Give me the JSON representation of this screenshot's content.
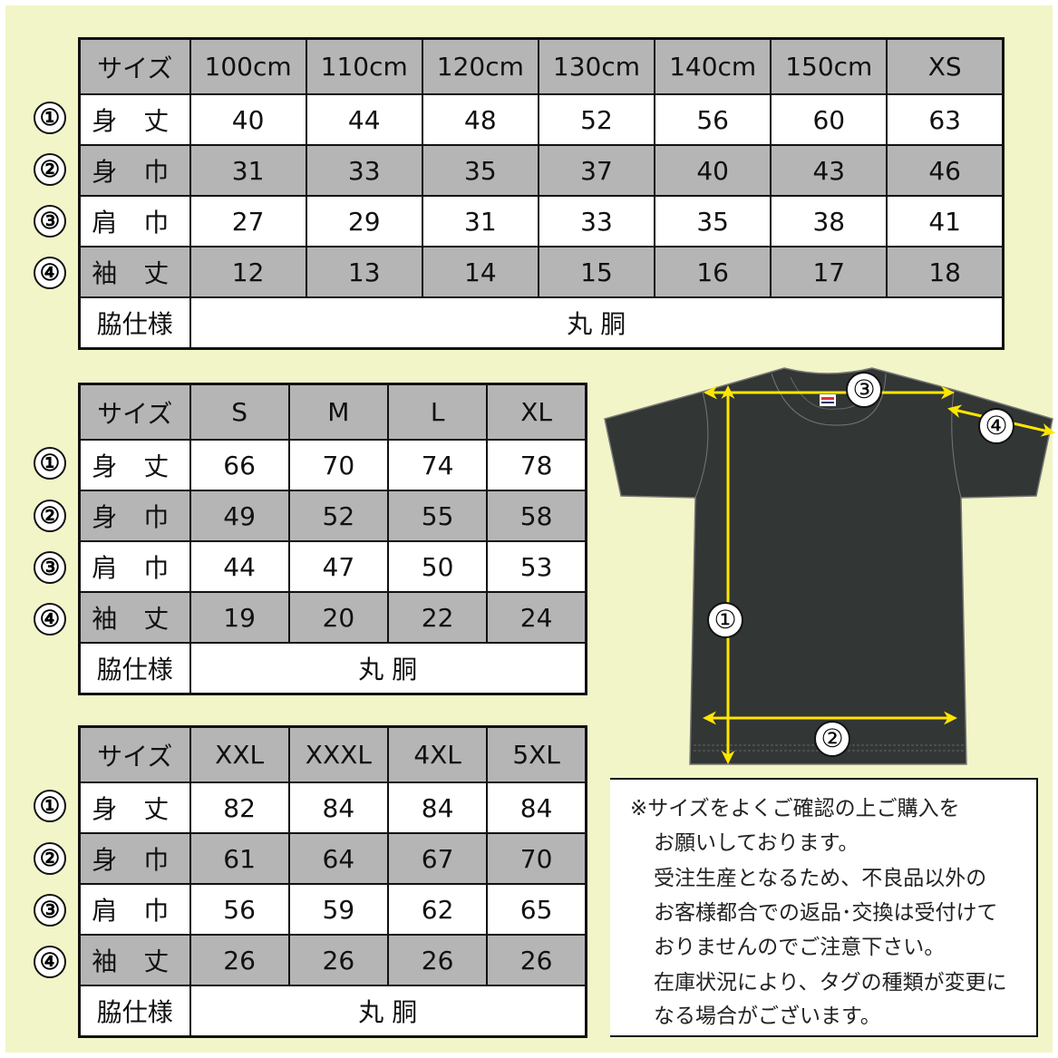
{
  "colors": {
    "background": "#f2f5c7",
    "header_gray": "#b5b5b5",
    "shirt": "#323635",
    "arrow": "#ffe600"
  },
  "row_labels": {
    "size": "サイズ",
    "length": "身 丈",
    "width": "身 巾",
    "shoulder": "肩 巾",
    "sleeve": "袖 丈",
    "side": "脇仕様"
  },
  "row_numbers": [
    "①",
    "②",
    "③",
    "④"
  ],
  "side_value": "丸 胴",
  "table1": {
    "sizes": [
      "100cm",
      "110cm",
      "120cm",
      "130cm",
      "140cm",
      "150cm",
      "XS"
    ],
    "length": [
      "40",
      "44",
      "48",
      "52",
      "56",
      "60",
      "63"
    ],
    "width": [
      "31",
      "33",
      "35",
      "37",
      "40",
      "43",
      "46"
    ],
    "shoulder": [
      "27",
      "29",
      "31",
      "33",
      "35",
      "38",
      "41"
    ],
    "sleeve": [
      "12",
      "13",
      "14",
      "15",
      "16",
      "17",
      "18"
    ]
  },
  "table2": {
    "sizes": [
      "S",
      "M",
      "L",
      "XL"
    ],
    "length": [
      "66",
      "70",
      "74",
      "78"
    ],
    "width": [
      "49",
      "52",
      "55",
      "58"
    ],
    "shoulder": [
      "44",
      "47",
      "50",
      "53"
    ],
    "sleeve": [
      "19",
      "20",
      "22",
      "24"
    ]
  },
  "table3": {
    "sizes": [
      "XXL",
      "XXXL",
      "4XL",
      "5XL"
    ],
    "length": [
      "82",
      "84",
      "84",
      "84"
    ],
    "width": [
      "61",
      "64",
      "67",
      "70"
    ],
    "shoulder": [
      "56",
      "59",
      "62",
      "65"
    ],
    "sleeve": [
      "26",
      "26",
      "26",
      "26"
    ]
  },
  "diagram": {
    "markers": [
      "①",
      "②",
      "③",
      "④"
    ]
  },
  "note": {
    "lines": [
      "※サイズをよくご確認の上ご購入を",
      "お願いしております。",
      "受注生産となるため、不良品以外の",
      "お客様都合での返品･交換は受付けて",
      "おりませんのでご注意下さい。",
      "在庫状況により、タグの種類が変更に",
      "なる場合がございます。"
    ]
  }
}
